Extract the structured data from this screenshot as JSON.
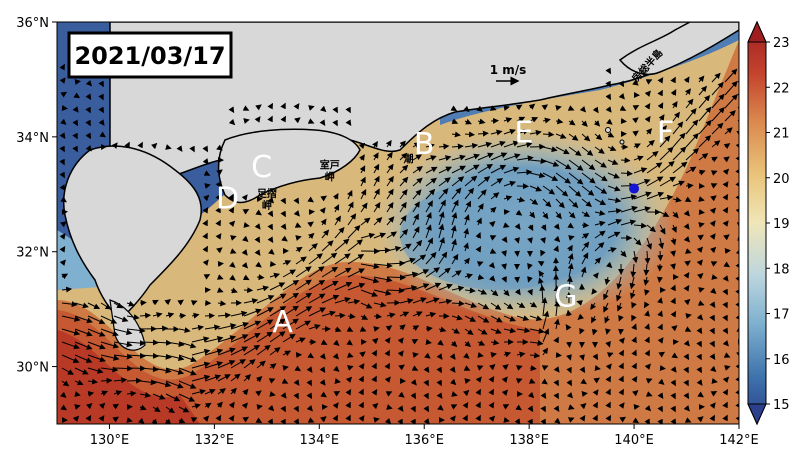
{
  "date_label": "2021/03/17",
  "scale_label": "1 m/s",
  "axes": {
    "lon_ticks": [
      "130°E",
      "132°E",
      "134°E",
      "136°E",
      "138°E",
      "140°E",
      "142°E"
    ],
    "lat_ticks": [
      "30°N",
      "32°N",
      "34°N",
      "36°N"
    ],
    "lon_range": [
      129,
      142
    ],
    "lat_range": [
      29,
      36
    ]
  },
  "colorbar": {
    "ticks": [
      "15",
      "16",
      "17",
      "18",
      "19",
      "20",
      "21",
      "22",
      "23"
    ],
    "range": [
      15,
      23
    ],
    "colors": [
      "#2b3f8c",
      "#3f74ad",
      "#7fb0cf",
      "#bcd6de",
      "#f0e6b8",
      "#e9c47a",
      "#db8a4f",
      "#c4442e",
      "#9e1e22"
    ]
  },
  "regions": [
    {
      "id": "A",
      "label": "A",
      "lon": 133.3,
      "lat": 30.6
    },
    {
      "id": "B",
      "label": "B",
      "lon": 136.0,
      "lat": 33.7
    },
    {
      "id": "C",
      "label": "C",
      "lon": 132.9,
      "lat": 33.3
    },
    {
      "id": "D",
      "label": "D",
      "lon": 132.25,
      "lat": 32.75
    },
    {
      "id": "E",
      "label": "E",
      "lon": 137.9,
      "lat": 33.9
    },
    {
      "id": "F",
      "label": "F",
      "lon": 140.6,
      "lat": 33.9
    },
    {
      "id": "G",
      "label": "G",
      "lon": 138.7,
      "lat": 31.05
    }
  ],
  "place_names": [
    {
      "id": "muroto",
      "label": "室戸",
      "label2": "岬",
      "lon": 134.2,
      "lat": 33.45
    },
    {
      "id": "ashizuri",
      "label": "足摺",
      "label2": "岬",
      "lon": 133.0,
      "lat": 32.95
    },
    {
      "id": "shiono",
      "label": "潮",
      "label2": "",
      "lon": 135.7,
      "lat": 33.55
    },
    {
      "id": "boso",
      "label": "房総半島",
      "label2": "",
      "lon": 140.3,
      "lat": 35.2
    }
  ],
  "marker": {
    "color": "#1414d2",
    "lon": 140.0,
    "lat": 33.1
  },
  "colors": {
    "land": "#d8d8d8",
    "coast": "#000000",
    "vector": "#000000"
  }
}
